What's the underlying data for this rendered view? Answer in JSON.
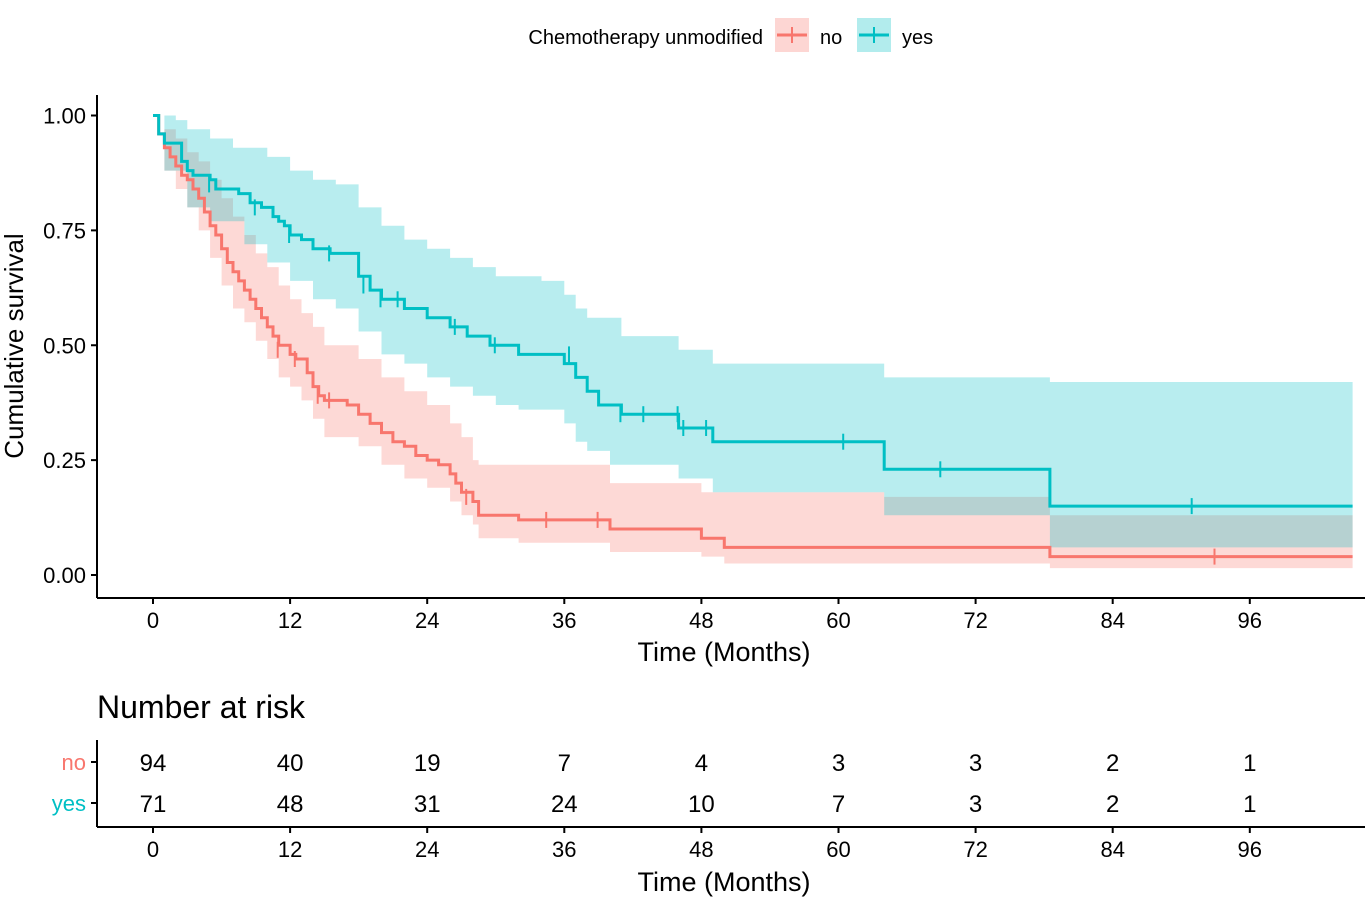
{
  "chart_data": {
    "type": "kaplan-meier",
    "legend": {
      "title": "Chemotherapy unmodified",
      "position": "top",
      "labels": [
        "no",
        "yes"
      ]
    },
    "ylabel": "Cumulative survival",
    "xlabel": "Time (Months)",
    "xlim": [
      -1,
      105
    ],
    "ylim": [
      -0.05,
      1.05
    ],
    "xticks": [
      0,
      12,
      24,
      36,
      48,
      60,
      72,
      84,
      96
    ],
    "yticks": [
      0.0,
      0.25,
      0.5,
      0.75,
      1.0
    ],
    "ytick_labels": [
      "0.00",
      "0.25",
      "0.50",
      "0.75",
      "1.00"
    ],
    "series": [
      {
        "name": "no",
        "color": "#F8766D",
        "fill": "#F8766D",
        "curve": [
          [
            0,
            1.0
          ],
          [
            0.5,
            0.96
          ],
          [
            1,
            0.93
          ],
          [
            1.5,
            0.91
          ],
          [
            2,
            0.89
          ],
          [
            2.5,
            0.87
          ],
          [
            3,
            0.86
          ],
          [
            3.5,
            0.84
          ],
          [
            4,
            0.82
          ],
          [
            4.5,
            0.79
          ],
          [
            5,
            0.76
          ],
          [
            5.5,
            0.74
          ],
          [
            6,
            0.71
          ],
          [
            6.5,
            0.68
          ],
          [
            7,
            0.66
          ],
          [
            7.5,
            0.64
          ],
          [
            8,
            0.62
          ],
          [
            8.5,
            0.6
          ],
          [
            9,
            0.58
          ],
          [
            9.5,
            0.56
          ],
          [
            10,
            0.54
          ],
          [
            10.5,
            0.52
          ],
          [
            11,
            0.5
          ],
          [
            12,
            0.48
          ],
          [
            12.5,
            0.47
          ],
          [
            13.5,
            0.44
          ],
          [
            14,
            0.41
          ],
          [
            14.5,
            0.39
          ],
          [
            15,
            0.38
          ],
          [
            17,
            0.37
          ],
          [
            18,
            0.35
          ],
          [
            19,
            0.33
          ],
          [
            20,
            0.31
          ],
          [
            21,
            0.29
          ],
          [
            22,
            0.28
          ],
          [
            23,
            0.26
          ],
          [
            24,
            0.25
          ],
          [
            25,
            0.24
          ],
          [
            26,
            0.22
          ],
          [
            26.5,
            0.2
          ],
          [
            27,
            0.18
          ],
          [
            28,
            0.16
          ],
          [
            28.5,
            0.13
          ],
          [
            32,
            0.12
          ],
          [
            40,
            0.1
          ],
          [
            48,
            0.08
          ],
          [
            50,
            0.06
          ],
          [
            78.5,
            0.04
          ],
          [
            105,
            0.04
          ]
        ],
        "lower": [
          [
            0,
            1.0
          ],
          [
            1,
            0.88
          ],
          [
            2,
            0.84
          ],
          [
            3,
            0.8
          ],
          [
            4,
            0.75
          ],
          [
            5,
            0.69
          ],
          [
            6,
            0.63
          ],
          [
            7,
            0.58
          ],
          [
            8,
            0.55
          ],
          [
            9,
            0.51
          ],
          [
            10,
            0.47
          ],
          [
            11,
            0.43
          ],
          [
            12,
            0.41
          ],
          [
            13,
            0.38
          ],
          [
            14,
            0.34
          ],
          [
            15,
            0.3
          ],
          [
            18,
            0.28
          ],
          [
            20,
            0.24
          ],
          [
            22,
            0.21
          ],
          [
            24,
            0.19
          ],
          [
            26,
            0.16
          ],
          [
            27,
            0.13
          ],
          [
            28,
            0.11
          ],
          [
            28.5,
            0.08
          ],
          [
            32,
            0.07
          ],
          [
            40,
            0.05
          ],
          [
            48,
            0.04
          ],
          [
            50,
            0.025
          ],
          [
            78.5,
            0.015
          ],
          [
            105,
            0.015
          ]
        ],
        "upper": [
          [
            0,
            1.0
          ],
          [
            1,
            0.97
          ],
          [
            2,
            0.95
          ],
          [
            3,
            0.92
          ],
          [
            4,
            0.9
          ],
          [
            5,
            0.86
          ],
          [
            6,
            0.82
          ],
          [
            7,
            0.78
          ],
          [
            8,
            0.74
          ],
          [
            9,
            0.7
          ],
          [
            10,
            0.67
          ],
          [
            11,
            0.63
          ],
          [
            12,
            0.6
          ],
          [
            13,
            0.57
          ],
          [
            14,
            0.54
          ],
          [
            15,
            0.5
          ],
          [
            18,
            0.47
          ],
          [
            20,
            0.43
          ],
          [
            22,
            0.4
          ],
          [
            24,
            0.37
          ],
          [
            26,
            0.33
          ],
          [
            27,
            0.3
          ],
          [
            28,
            0.25
          ],
          [
            28.5,
            0.24
          ],
          [
            40,
            0.2
          ],
          [
            48,
            0.18
          ],
          [
            50,
            0.18
          ],
          [
            64,
            0.17
          ],
          [
            78.5,
            0.13
          ],
          [
            105,
            0.13
          ]
        ],
        "censor": [
          [
            11,
            0.49
          ],
          [
            12.5,
            0.47
          ],
          [
            14.5,
            0.39
          ],
          [
            15.5,
            0.38
          ],
          [
            27.5,
            0.17
          ],
          [
            34.5,
            0.12
          ],
          [
            39,
            0.12
          ],
          [
            93,
            0.04
          ]
        ]
      },
      {
        "name": "yes",
        "color": "#00BFC4",
        "fill": "#00BFC4",
        "curve": [
          [
            0,
            1.0
          ],
          [
            0.5,
            0.96
          ],
          [
            1,
            0.94
          ],
          [
            2.5,
            0.9
          ],
          [
            3,
            0.88
          ],
          [
            3.5,
            0.87
          ],
          [
            5,
            0.86
          ],
          [
            5.5,
            0.84
          ],
          [
            7.5,
            0.83
          ],
          [
            8.5,
            0.81
          ],
          [
            9.5,
            0.8
          ],
          [
            10.5,
            0.78
          ],
          [
            11,
            0.77
          ],
          [
            11.5,
            0.76
          ],
          [
            12,
            0.74
          ],
          [
            13,
            0.73
          ],
          [
            14,
            0.71
          ],
          [
            15.5,
            0.7
          ],
          [
            18,
            0.65
          ],
          [
            19,
            0.62
          ],
          [
            20,
            0.6
          ],
          [
            22,
            0.58
          ],
          [
            24,
            0.56
          ],
          [
            26,
            0.54
          ],
          [
            27.5,
            0.52
          ],
          [
            29.5,
            0.5
          ],
          [
            32,
            0.48
          ],
          [
            36,
            0.46
          ],
          [
            37,
            0.43
          ],
          [
            38,
            0.4
          ],
          [
            39,
            0.37
          ],
          [
            41,
            0.35
          ],
          [
            46,
            0.32
          ],
          [
            49,
            0.29
          ],
          [
            60,
            0.29
          ],
          [
            64,
            0.23
          ],
          [
            78.5,
            0.15
          ],
          [
            105,
            0.15
          ]
        ],
        "lower": [
          [
            0,
            1.0
          ],
          [
            1,
            0.88
          ],
          [
            3,
            0.8
          ],
          [
            5,
            0.77
          ],
          [
            8,
            0.72
          ],
          [
            10,
            0.68
          ],
          [
            12,
            0.64
          ],
          [
            14,
            0.6
          ],
          [
            16,
            0.58
          ],
          [
            18,
            0.53
          ],
          [
            20,
            0.48
          ],
          [
            22,
            0.46
          ],
          [
            24,
            0.43
          ],
          [
            26,
            0.41
          ],
          [
            28,
            0.39
          ],
          [
            30,
            0.37
          ],
          [
            32,
            0.36
          ],
          [
            36,
            0.33
          ],
          [
            37,
            0.29
          ],
          [
            38,
            0.27
          ],
          [
            40,
            0.24
          ],
          [
            46,
            0.21
          ],
          [
            49,
            0.18
          ],
          [
            64,
            0.13
          ],
          [
            78.5,
            0.06
          ],
          [
            105,
            0.06
          ]
        ],
        "upper": [
          [
            0,
            1.0
          ],
          [
            1,
            1.0
          ],
          [
            2,
            0.99
          ],
          [
            3,
            0.97
          ],
          [
            5,
            0.95
          ],
          [
            7,
            0.93
          ],
          [
            10,
            0.91
          ],
          [
            12,
            0.88
          ],
          [
            14,
            0.86
          ],
          [
            16,
            0.85
          ],
          [
            18,
            0.8
          ],
          [
            20,
            0.76
          ],
          [
            22,
            0.73
          ],
          [
            24,
            0.71
          ],
          [
            26,
            0.69
          ],
          [
            28,
            0.67
          ],
          [
            30,
            0.65
          ],
          [
            34,
            0.64
          ],
          [
            36,
            0.61
          ],
          [
            37,
            0.58
          ],
          [
            38,
            0.56
          ],
          [
            41,
            0.52
          ],
          [
            46,
            0.49
          ],
          [
            49,
            0.46
          ],
          [
            64,
            0.43
          ],
          [
            78.5,
            0.42
          ],
          [
            105,
            0.42
          ]
        ],
        "censor": [
          [
            5,
            0.85
          ],
          [
            9,
            0.8
          ],
          [
            12,
            0.74
          ],
          [
            15.5,
            0.7
          ],
          [
            18.5,
            0.63
          ],
          [
            20,
            0.6
          ],
          [
            21.5,
            0.6
          ],
          [
            26.5,
            0.54
          ],
          [
            30,
            0.5
          ],
          [
            36.5,
            0.48
          ],
          [
            41,
            0.35
          ],
          [
            43,
            0.35
          ],
          [
            46,
            0.35
          ],
          [
            46.5,
            0.32
          ],
          [
            48.5,
            0.32
          ],
          [
            60.5,
            0.29
          ],
          [
            69,
            0.23
          ],
          [
            91,
            0.15
          ]
        ]
      }
    ],
    "risk_table": {
      "title": "Number at risk",
      "times": [
        0,
        12,
        24,
        36,
        48,
        60,
        72,
        84,
        96
      ],
      "rows": [
        {
          "label": "no",
          "color": "#F8766D",
          "counts": [
            94,
            40,
            19,
            7,
            4,
            3,
            3,
            2,
            1
          ]
        },
        {
          "label": "yes",
          "color": "#00BFC4",
          "counts": [
            71,
            48,
            31,
            24,
            10,
            7,
            3,
            2,
            1
          ]
        }
      ],
      "xlabel": "Time (Months)"
    }
  }
}
